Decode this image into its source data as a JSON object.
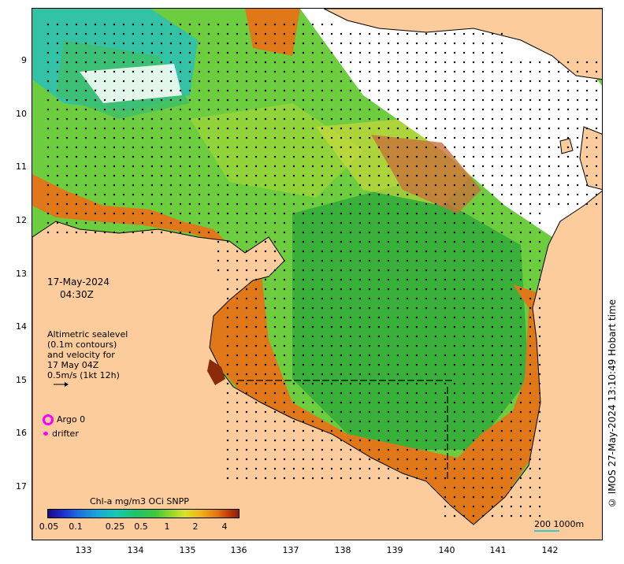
{
  "map": {
    "date": "17-May-2024",
    "time": "04:30Z",
    "credit": "© IMOS 27-May-2024 13:10:49 Hobart time",
    "lat_ticks": [
      "9",
      "10",
      "11",
      "12",
      "13",
      "14",
      "15",
      "16",
      "17"
    ],
    "lon_ticks": [
      "133",
      "134",
      "135",
      "136",
      "137",
      "138",
      "139",
      "140",
      "141",
      "142"
    ],
    "extent": {
      "lon_min": 132.0,
      "lon_max": 143.0,
      "lat_min": -17.9,
      "lat_max": -8.0
    },
    "colors": {
      "land": "#fccc9c",
      "coast_band": "#d35a10",
      "open_sea": "#6ccd3f",
      "deep_green": "#2faa3a",
      "north_cyan": "#29c0b8",
      "vector": "#000000",
      "marker": "#ff00ff"
    }
  },
  "legend": {
    "description_lines": [
      "Altimetric sealevel",
      "(0.1m contours)",
      "and velocity for",
      "17 May 04Z",
      "0.5m/s (1kt 12h)"
    ],
    "argo_label": "Argo 0",
    "drifter_label": "drifter"
  },
  "colorbar": {
    "title": "Chl-a mg/m3 OCi SNPP",
    "ticks": [
      "0.05",
      "0.1",
      "0.25",
      "0.5",
      "1",
      "2",
      "4"
    ]
  },
  "scale": {
    "text": "200  1000m"
  }
}
